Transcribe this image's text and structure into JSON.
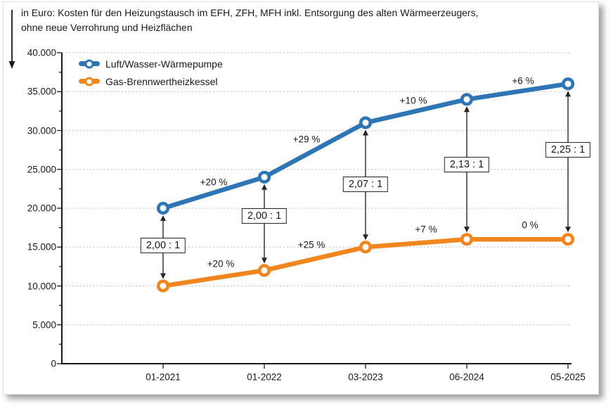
{
  "title": {
    "line1": "in Euro: Kosten für den Heizungstausch im EFH, ZFH, MFH inkl. Entsorgung des alten Wärmeerzeugers,",
    "line2": "ohne neue Verrohrung und Heizflächen"
  },
  "chart_data": {
    "type": "line",
    "title": "in Euro: Kosten für den Heizungstausch im EFH, ZFH, MFH inkl. Entsorgung des alten Wärmeerzeugers, ohne neue Verrohrung und Heizflächen",
    "categories": [
      "01-2021",
      "01-2022",
      "03-2023",
      "06-2024",
      "05-2025"
    ],
    "series": [
      {
        "name": "Luft/Wasser-Wärmepumpe",
        "color": "#2E75B6",
        "values": [
          20000,
          24000,
          31000,
          34000,
          36000
        ],
        "segment_change_labels": [
          "+20 %",
          "+29 %",
          "+10 %",
          "+6 %"
        ]
      },
      {
        "name": "Gas-Brennwertheizkessel",
        "color": "#F0861D",
        "values": [
          10000,
          12000,
          15000,
          16000,
          16000
        ],
        "segment_change_labels": [
          "+20 %",
          "+25 %",
          "+7 %",
          "0 %"
        ]
      }
    ],
    "ratio_callouts": [
      "2,00 : 1",
      "2,00 : 1",
      "2,07 : 1",
      "2,13 : 1",
      "2,25 : 1"
    ],
    "ylim": [
      0,
      40000
    ],
    "ytick_step": 5000,
    "ytick_labels": [
      "0",
      "5.000",
      "10.000",
      "15.000",
      "20.000",
      "25.000",
      "30.000",
      "35.000",
      "40.000"
    ],
    "grid": "horizontal dotted",
    "legend_position": "top-left inside plot"
  }
}
